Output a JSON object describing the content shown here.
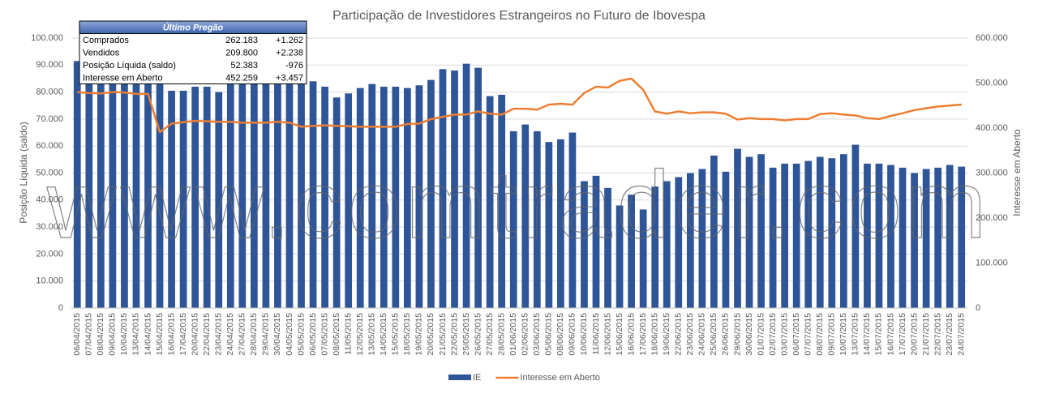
{
  "chart_data": {
    "type": "bar_line",
    "title": "Participação de Investidores Estrangeiros no Futuro de Ibovespa",
    "y_label": "Posição Líquida (saldo)",
    "y2_label": "Interesse em Aberto",
    "watermark": "www.comtrader.com",
    "categories": [
      "06/04/2015",
      "07/04/2015",
      "08/04/2015",
      "09/04/2015",
      "10/04/2015",
      "13/04/2015",
      "14/04/2015",
      "15/04/2015",
      "16/04/2015",
      "17/04/2015",
      "20/04/2015",
      "22/04/2015",
      "23/04/2015",
      "24/04/2015",
      "27/04/2015",
      "28/04/2015",
      "29/04/2015",
      "30/04/2015",
      "04/05/2015",
      "05/05/2015",
      "06/05/2015",
      "07/05/2015",
      "08/05/2015",
      "11/05/2015",
      "12/05/2015",
      "13/05/2015",
      "14/05/2015",
      "15/05/2015",
      "18/05/2015",
      "19/05/2015",
      "20/05/2015",
      "21/05/2015",
      "22/05/2015",
      "25/05/2015",
      "26/05/2015",
      "27/05/2015",
      "28/05/2015",
      "01/06/2015",
      "02/06/2015",
      "03/06/2015",
      "05/06/2015",
      "08/06/2015",
      "09/06/2015",
      "10/06/2015",
      "11/06/2015",
      "12/06/2015",
      "15/06/2015",
      "16/06/2015",
      "17/06/2015",
      "18/06/2015",
      "19/06/2015",
      "22/06/2015",
      "23/06/2015",
      "24/06/2015",
      "25/06/2015",
      "26/06/2015",
      "29/06/2015",
      "30/06/2015",
      "01/07/2015",
      "02/07/2015",
      "03/07/2015",
      "06/07/2015",
      "07/07/2015",
      "08/07/2015",
      "09/07/2015",
      "10/07/2015",
      "13/07/2015",
      "14/07/2015",
      "15/07/2015",
      "16/07/2015",
      "17/07/2015",
      "20/07/2015",
      "21/07/2015",
      "22/07/2015",
      "23/07/2015",
      "24/07/2015"
    ],
    "series": [
      {
        "name": "IE",
        "type": "bar",
        "color": "#2e5597",
        "values": [
          91500,
          83000,
          83000,
          83000,
          83000,
          83000,
          83000,
          83000,
          80500,
          80500,
          82000,
          82000,
          80000,
          83000,
          83000,
          83000,
          83000,
          83000,
          83000,
          83000,
          84000,
          82000,
          78000,
          79500,
          81500,
          83000,
          82000,
          82000,
          81500,
          82500,
          84500,
          88500,
          88000,
          90500,
          89000,
          78500,
          79000,
          65500,
          68000,
          65500,
          61500,
          62500,
          65000,
          47000,
          49000,
          44500,
          38000,
          42000,
          36500,
          45000,
          47000,
          48500,
          50000,
          51500,
          56500,
          50500,
          59000,
          56000,
          57000,
          52000,
          53500,
          53500,
          54500,
          56000,
          55500,
          57000,
          60500,
          53500,
          53500,
          53000,
          52000,
          50000,
          51500,
          52000,
          53000,
          52383
        ]
      },
      {
        "name": "Interesse em Aberto",
        "type": "line",
        "axis": "y2",
        "color": "#ed7d31",
        "values": [
          480000,
          478000,
          477000,
          480000,
          479000,
          476000,
          476000,
          391000,
          410000,
          413000,
          416000,
          415000,
          414000,
          414000,
          412000,
          412000,
          412000,
          414000,
          412000,
          403000,
          405000,
          406000,
          405000,
          404000,
          403000,
          403000,
          403000,
          403000,
          409000,
          410000,
          420000,
          425000,
          430000,
          430000,
          437000,
          432000,
          430000,
          443000,
          443000,
          441000,
          452000,
          454000,
          452000,
          478000,
          492000,
          490000,
          505000,
          510000,
          485000,
          437000,
          432000,
          437000,
          433000,
          435000,
          435000,
          432000,
          419000,
          422000,
          420000,
          420000,
          417000,
          420000,
          420000,
          431000,
          433000,
          430000,
          428000,
          422000,
          420000,
          427000,
          433000,
          440000,
          444000,
          448000,
          450000,
          452259
        ]
      }
    ],
    "ylim": [
      0,
      100000
    ],
    "yticks": [
      0,
      {
        "value": 10000,
        "label": "10.000"
      },
      {
        "value": 20000,
        "label": "20.000"
      },
      {
        "value": 30000,
        "label": "30.000"
      },
      {
        "value": 40000,
        "label": "40.000"
      },
      {
        "value": 50000,
        "label": "50.000"
      },
      {
        "value": 60000,
        "label": "60.000"
      },
      {
        "value": 70000,
        "label": "70.000"
      },
      {
        "value": 80000,
        "label": "80.000"
      },
      {
        "value": 90000,
        "label": "90.000"
      },
      {
        "value": 100000,
        "label": "100.000"
      }
    ],
    "y2lim": [
      0,
      600000
    ],
    "y2ticks": [
      0,
      {
        "value": 100000,
        "label": "100.000"
      },
      {
        "value": 200000,
        "label": "200.000"
      },
      {
        "value": 300000,
        "label": "300.000"
      },
      {
        "value": 400000,
        "label": "400.000"
      },
      {
        "value": 500000,
        "label": "500.000"
      },
      {
        "value": 600000,
        "label": "600.000"
      }
    ],
    "grid": true,
    "legend": "bottom",
    "table": {
      "title": "Último Pregão",
      "rows": [
        [
          "Comprados",
          "262.183",
          "+1.262"
        ],
        [
          "Vendidos",
          "209.800",
          "+2.238"
        ],
        [
          "Posição Líquida (saldo)",
          "52.383",
          "-976"
        ],
        [
          "Interesse em Aberto",
          "452.259",
          "+3.457"
        ]
      ]
    }
  }
}
